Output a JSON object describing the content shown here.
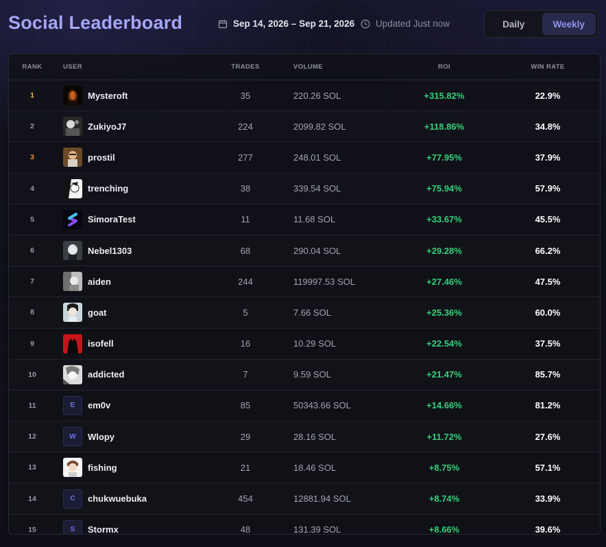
{
  "header": {
    "title": "Social Leaderboard",
    "date_range": "Sep 14, 2026 – Sep 21, 2026",
    "updated": "Updated Just now",
    "tabs": [
      {
        "label": "Daily",
        "active": false
      },
      {
        "label": "Weekly",
        "active": true
      }
    ]
  },
  "colors": {
    "accent": "#a5a6f6",
    "roi_positive": "#36d07a",
    "rank_gold": "#f2c14a",
    "rank_bronze": "#e88a3c",
    "active_tab_bg": "#272a4a"
  },
  "table": {
    "columns": [
      "RANK",
      "USER",
      "TRADES",
      "VOLUME",
      "ROI",
      "WIN RATE"
    ],
    "rows": [
      {
        "rank": "1",
        "user": "Mysteroft",
        "avatar": "image",
        "trades": "35",
        "volume": "220.26 SOL",
        "roi": "+315.82%",
        "win_rate": "22.9%"
      },
      {
        "rank": "2",
        "user": "ZukiyoJ7",
        "avatar": "image",
        "trades": "224",
        "volume": "2099.82 SOL",
        "roi": "+118.86%",
        "win_rate": "34.8%"
      },
      {
        "rank": "3",
        "user": "prostil",
        "avatar": "image",
        "trades": "277",
        "volume": "248.01 SOL",
        "roi": "+77.95%",
        "win_rate": "37.9%"
      },
      {
        "rank": "4",
        "user": "trenching",
        "avatar": "image",
        "trades": "38",
        "volume": "339.54 SOL",
        "roi": "+75.94%",
        "win_rate": "57.9%"
      },
      {
        "rank": "5",
        "user": "SimoraTest",
        "avatar": "image",
        "trades": "11",
        "volume": "11.68 SOL",
        "roi": "+33.67%",
        "win_rate": "45.5%"
      },
      {
        "rank": "6",
        "user": "Nebel1303",
        "avatar": "image",
        "trades": "68",
        "volume": "290.04 SOL",
        "roi": "+29.28%",
        "win_rate": "66.2%"
      },
      {
        "rank": "7",
        "user": "aiden",
        "avatar": "image",
        "trades": "244",
        "volume": "119997.53 SOL",
        "roi": "+27.46%",
        "win_rate": "47.5%"
      },
      {
        "rank": "8",
        "user": "goat",
        "avatar": "image",
        "trades": "5",
        "volume": "7.66 SOL",
        "roi": "+25.36%",
        "win_rate": "60.0%"
      },
      {
        "rank": "9",
        "user": "isofell",
        "avatar": "image",
        "trades": "16",
        "volume": "10.29 SOL",
        "roi": "+22.54%",
        "win_rate": "37.5%"
      },
      {
        "rank": "10",
        "user": "addicted",
        "avatar": "image",
        "trades": "7",
        "volume": "9.59 SOL",
        "roi": "+21.47%",
        "win_rate": "85.7%"
      },
      {
        "rank": "11",
        "user": "em0v",
        "avatar": "E",
        "trades": "85",
        "volume": "50343.66 SOL",
        "roi": "+14.66%",
        "win_rate": "81.2%"
      },
      {
        "rank": "12",
        "user": "Wlopy",
        "avatar": "W",
        "trades": "29",
        "volume": "28.16 SOL",
        "roi": "+11.72%",
        "win_rate": "27.6%"
      },
      {
        "rank": "13",
        "user": "fishing",
        "avatar": "image",
        "trades": "21",
        "volume": "18.46 SOL",
        "roi": "+8.75%",
        "win_rate": "57.1%"
      },
      {
        "rank": "14",
        "user": "chukwuebuka",
        "avatar": "C",
        "trades": "454",
        "volume": "12881.94 SOL",
        "roi": "+8.74%",
        "win_rate": "33.9%"
      },
      {
        "rank": "15",
        "user": "Stormx",
        "avatar": "S",
        "trades": "48",
        "volume": "131.39 SOL",
        "roi": "+8.66%",
        "win_rate": "39.6%"
      }
    ]
  }
}
